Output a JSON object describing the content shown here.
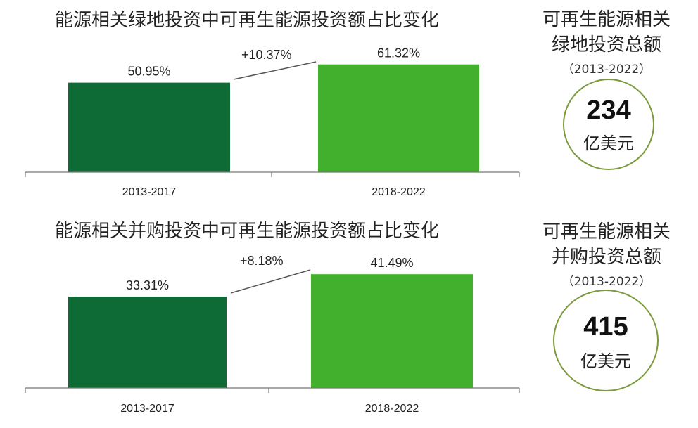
{
  "chart_data": [
    {
      "type": "bar",
      "title": "能源相关绿地投资中可再生能源投资额占比变化",
      "categories": [
        "2013-2017",
        "2018-2022"
      ],
      "values": [
        50.95,
        61.32
      ],
      "value_labels": [
        "50.95%",
        "61.32%"
      ],
      "colors": [
        "#0f6b35",
        "#42b02c"
      ],
      "change_label": "+10.37%",
      "ylim": [
        0,
        100
      ]
    },
    {
      "type": "bar",
      "title": "能源相关并购投资中可再生能源投资额占比变化",
      "categories": [
        "2013-2017",
        "2018-2022"
      ],
      "values": [
        33.31,
        41.49
      ],
      "value_labels": [
        "33.31%",
        "41.49%"
      ],
      "colors": [
        "#0f6b35",
        "#42b02c"
      ],
      "change_label": "+8.18%",
      "ylim": [
        0,
        100
      ]
    }
  ],
  "side_panels": [
    {
      "title_line1": "可再生能源相关",
      "title_line2": "绿地投资总额",
      "period": "（2013-2022）",
      "total": "234",
      "unit": "亿美元"
    },
    {
      "title_line1": "可再生能源相关",
      "title_line2": "并购投资总额",
      "period": "（2013-2022）",
      "total": "415",
      "unit": "亿美元"
    }
  ],
  "colors": {
    "circle_border": "#7a9a3c",
    "dark_green": "#0f6b35",
    "light_green": "#42b02c"
  }
}
